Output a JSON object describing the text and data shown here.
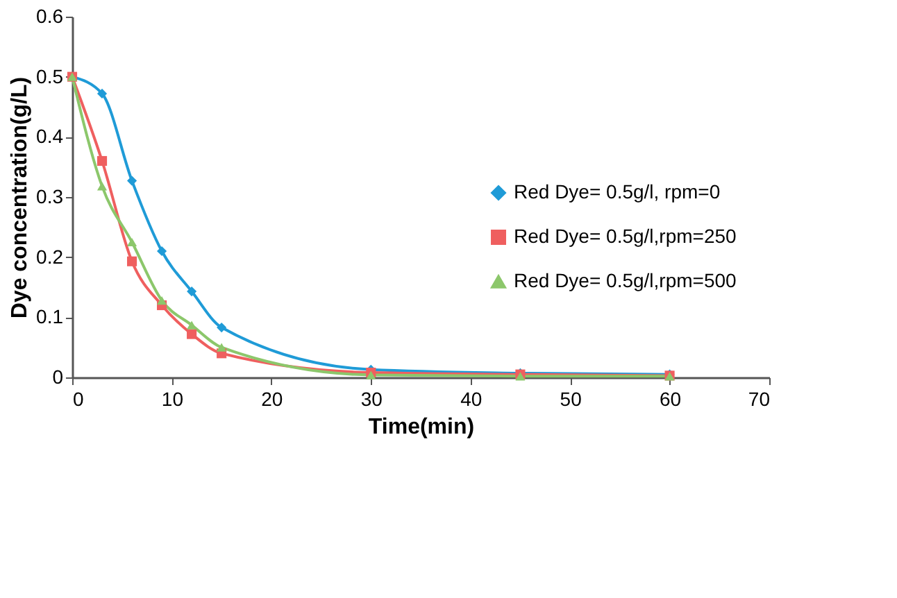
{
  "chart_data": {
    "type": "line",
    "xlabel": "Time(min)",
    "ylabel": "Dye concentration(g/L)",
    "x": [
      0,
      3,
      6,
      9,
      12,
      15,
      30,
      45,
      60
    ],
    "series": [
      {
        "name": "Red Dye= 0.5g/l, rpm=0",
        "color": "#1f9bd7",
        "marker": "diamond",
        "values": [
          0.5,
          0.472,
          0.327,
          0.21,
          0.143,
          0.083,
          0.013,
          0.007,
          0.005
        ]
      },
      {
        "name": "Red Dye= 0.5g/l,rpm=250",
        "color": "#ef5f5f",
        "marker": "square",
        "values": [
          0.5,
          0.36,
          0.193,
          0.12,
          0.072,
          0.04,
          0.008,
          0.005,
          0.003
        ]
      },
      {
        "name": "Red Dye= 0.5g/l,rpm=500",
        "color": "#8cc76b",
        "marker": "triangle",
        "values": [
          0.5,
          0.318,
          0.225,
          0.128,
          0.087,
          0.05,
          0.004,
          0.002,
          0.002
        ]
      }
    ],
    "xlim": [
      0,
      70
    ],
    "xticks": [
      0,
      10,
      20,
      30,
      40,
      50,
      60,
      70
    ],
    "ylim": [
      0,
      0.6
    ],
    "yticks": [
      0,
      0.1,
      0.2,
      0.3,
      0.4,
      0.5,
      0.6
    ],
    "grid": false,
    "legend": "right",
    "line_style": "solid"
  }
}
